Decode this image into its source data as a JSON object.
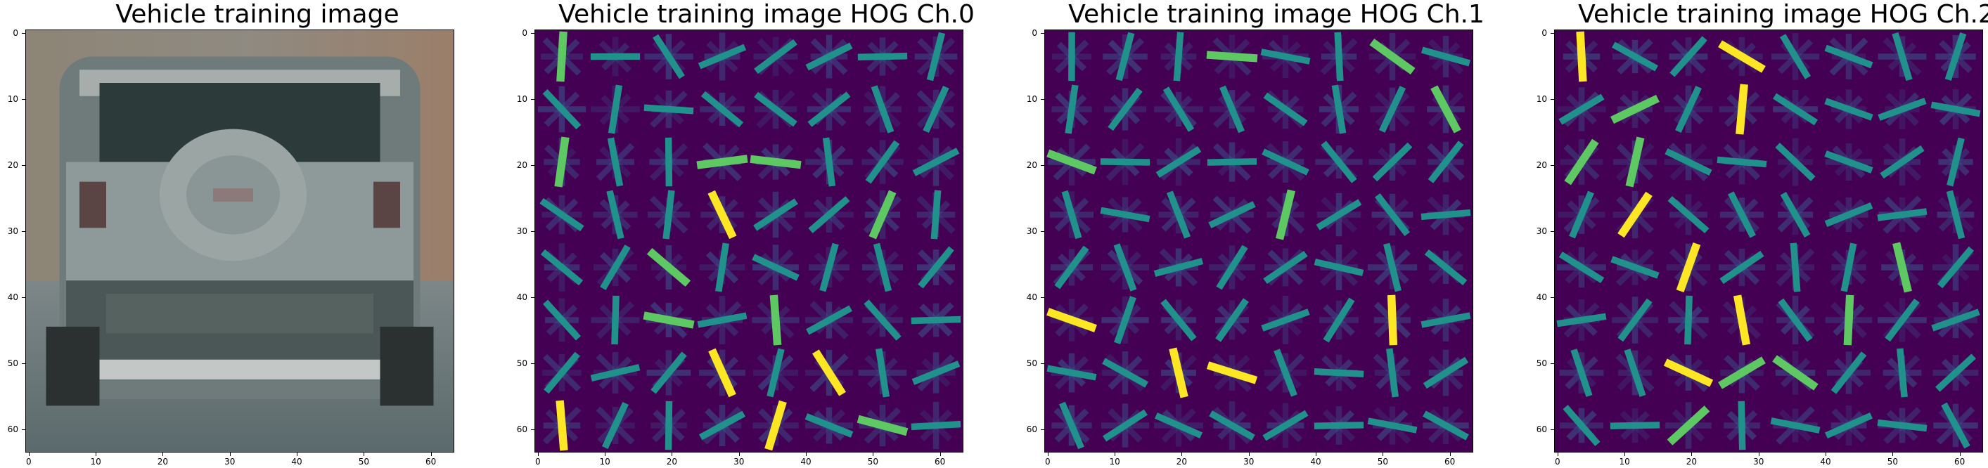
{
  "figure": {
    "panels": [
      {
        "title": "Vehicle training image",
        "kind": "photo"
      },
      {
        "title": "Vehicle training image HOG Ch.0",
        "kind": "hog"
      },
      {
        "title": "Vehicle training image HOG Ch.1",
        "kind": "hog"
      },
      {
        "title": "Vehicle training image HOG Ch.2",
        "kind": "hog"
      }
    ],
    "yticks": [
      "0",
      "10",
      "20",
      "30",
      "40",
      "50",
      "60"
    ],
    "xticks": [
      "0",
      "10",
      "20",
      "30",
      "40",
      "50",
      "60"
    ],
    "colors": {
      "hog_background": "#440154",
      "hog_low": "#3b528b",
      "hog_mid": "#21918c",
      "hog_high": "#5ec962",
      "hog_peak": "#fde725"
    }
  }
}
